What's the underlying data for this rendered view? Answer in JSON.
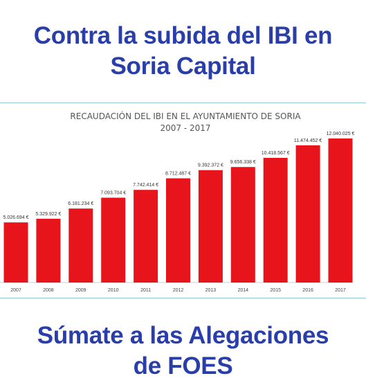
{
  "headline_top": [
    "Contra la subida del IBI en",
    "Soria Capital"
  ],
  "headline_bottom": [
    "Súmate a las Alegaciones",
    "de FOES"
  ],
  "colors": {
    "headline": "#2a3eaa",
    "bar": "#e8141c",
    "rule": "#8fc9d6"
  },
  "chart_data": {
    "type": "bar",
    "title": "RECAUDACIÓN DEL IBI EN EL AYUNTAMIENTO DE SORIA",
    "subtitle": "2007 - 2017",
    "xlabel": "",
    "ylabel": "",
    "grid": false,
    "categories": [
      "2007",
      "2008",
      "2009",
      "2010",
      "2011",
      "2012",
      "2013",
      "2014",
      "2015",
      "2016",
      "2017"
    ],
    "values": [
      5026694,
      5329922,
      6181234,
      7093704,
      7742414,
      8712487,
      9392372,
      9656338,
      10418567,
      11474452,
      12040025
    ],
    "data_labels": [
      "5.026.694 €",
      "5.329.922 €",
      "6.181.234 €",
      "7.093.704 €",
      "7.742.414 €",
      "8.712.487 €",
      "9.392.372 €",
      "9.656.338 €",
      "10.418.567 €",
      "11.474.452 €",
      "12.040.025 €"
    ]
  }
}
